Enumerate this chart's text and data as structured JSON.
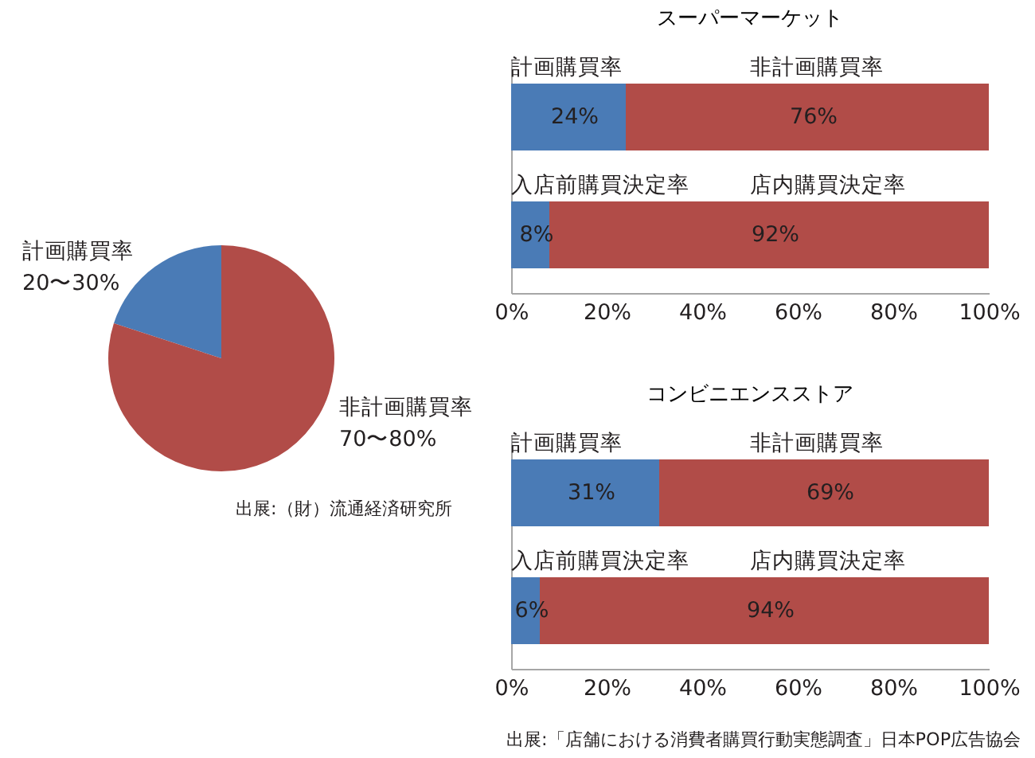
{
  "chart_data": [
    {
      "type": "pie",
      "categories": [
        "計画購買率",
        "非計画購買率"
      ],
      "values": [
        20,
        80
      ],
      "value_labels": [
        "20〜30%",
        "70〜80%"
      ],
      "colors": [
        "#4a7bb6",
        "#b14c48"
      ],
      "annotations": [
        "出展:（財）流通経済研究所"
      ]
    },
    {
      "type": "bar",
      "orientation": "horizontal",
      "stacked": true,
      "title": "スーパーマーケット",
      "categories": [
        null,
        null
      ],
      "tick_labels": "x",
      "xlim": [
        0,
        100
      ],
      "xticks": [
        {
          "value": 0,
          "label": "0%"
        },
        {
          "value": 20,
          "label": "20%"
        },
        {
          "value": 40,
          "label": "40%"
        },
        {
          "value": 60,
          "label": "60%"
        },
        {
          "value": 80,
          "label": "80%"
        },
        {
          "value": 100,
          "label": "100%"
        }
      ],
      "series": [
        {
          "name": "計画購買率",
          "color": "#4a7bb6",
          "values": [
            24,
            null
          ],
          "value_labels": [
            "24%",
            null
          ]
        },
        {
          "name": "非計画購買率",
          "color": "#b14c48",
          "values": [
            76,
            null
          ],
          "value_labels": [
            "76%",
            null
          ]
        },
        {
          "name": "入店前購買決定率",
          "color": "#4a7bb6",
          "values": [
            null,
            8
          ],
          "value_labels": [
            null,
            "8%"
          ]
        },
        {
          "name": "店内購買決定率",
          "color": "#b14c48",
          "values": [
            null,
            92
          ],
          "value_labels": [
            null,
            "92%"
          ]
        }
      ]
    },
    {
      "type": "bar",
      "orientation": "horizontal",
      "stacked": true,
      "title": "コンビニエンスストア",
      "categories": [
        null,
        null
      ],
      "tick_labels": "x",
      "xlim": [
        0,
        100
      ],
      "xticks": [
        {
          "value": 0,
          "label": "0%"
        },
        {
          "value": 20,
          "label": "20%"
        },
        {
          "value": 40,
          "label": "40%"
        },
        {
          "value": 60,
          "label": "60%"
        },
        {
          "value": 80,
          "label": "80%"
        },
        {
          "value": 100,
          "label": "100%"
        }
      ],
      "series": [
        {
          "name": "計画購買率",
          "color": "#4a7bb6",
          "values": [
            31,
            null
          ],
          "value_labels": [
            "31%",
            null
          ]
        },
        {
          "name": "非計画購買率",
          "color": "#b14c48",
          "values": [
            69,
            null
          ],
          "value_labels": [
            "69%",
            null
          ]
        },
        {
          "name": "入店前購買決定率",
          "color": "#4a7bb6",
          "values": [
            null,
            6
          ],
          "value_labels": [
            null,
            "6%"
          ]
        },
        {
          "name": "店内購買決定率",
          "color": "#b14c48",
          "values": [
            null,
            94
          ],
          "value_labels": [
            null,
            "94%"
          ]
        }
      ],
      "annotations": [
        "出展:「店舗における消費者購買行動実態調査」日本POP広告協会"
      ]
    }
  ]
}
